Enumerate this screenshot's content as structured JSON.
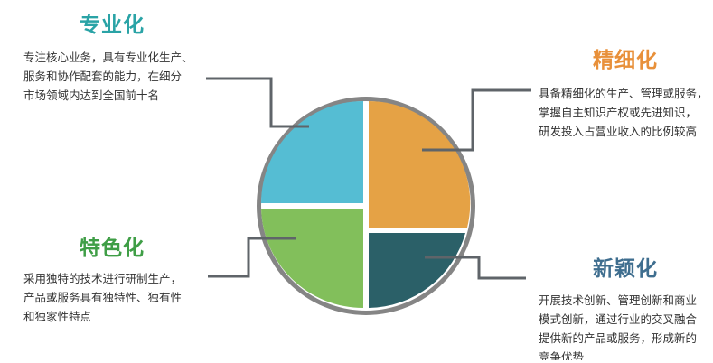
{
  "colors": {
    "teal": "#2aa3a6",
    "orange": "#e8903a",
    "green": "#3f9e46",
    "slate": "#3f6e8f",
    "segment_top_left": "#55bdd3",
    "segment_right": "#e5a245",
    "segment_bottom_left": "#82bf5b",
    "segment_bottom_right": "#2b6068",
    "ring": "#858585",
    "connector": "#5f6469"
  },
  "sections": {
    "zhuanye": {
      "title": "专业化",
      "lines": [
        "专注核心业务，具有专业化生产、",
        "服务和协作配套的能力，在细分",
        "市场领域内达到全国前十名"
      ]
    },
    "jingxi": {
      "title": "精细化",
      "lines": [
        "具备精细化的生产、管理或服务，",
        "掌握自主知识产权或先进知识，",
        "研发投入占营业收入的比例较高"
      ]
    },
    "tese": {
      "title": "特色化",
      "lines": [
        "采用独特的技术进行研制生产，",
        "产品或服务具有独特性、独有性",
        "和独家性特点"
      ]
    },
    "xinying": {
      "title": "新颖化",
      "lines": [
        "开展技术创新、管理创新和商业",
        "模式创新，通过行业的交叉融合",
        "提供新的产品或服务，形成新的",
        "竞争优势"
      ]
    }
  }
}
